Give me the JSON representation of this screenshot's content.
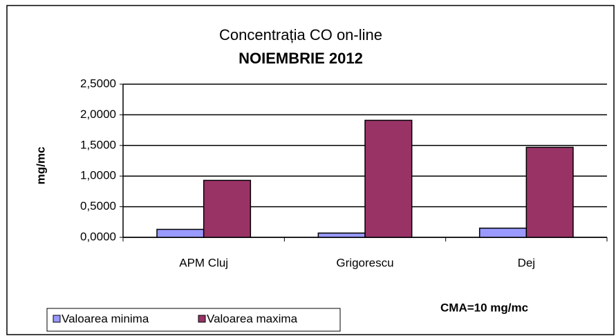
{
  "chart_data": {
    "type": "bar",
    "title": "Concentrația CO on-line",
    "subtitle": "NOIEMBRIE 2012",
    "y_label": "mg/mc",
    "annotation": "CMA=10 mg/mc",
    "categories": [
      "APM Cluj",
      "Grigorescu",
      "Dej"
    ],
    "series": [
      {
        "name": "Valoarea minima",
        "color": "#9999ff",
        "values": [
          0.13,
          0.07,
          0.15
        ]
      },
      {
        "name": "Valoarea maxima",
        "color": "#993366",
        "values": [
          0.93,
          1.91,
          1.47
        ]
      }
    ],
    "ylim": [
      0,
      2.5
    ],
    "yticks": [
      {
        "value": 0,
        "label": "0,0000"
      },
      {
        "value": 0.5,
        "label": "0,5000"
      },
      {
        "value": 1,
        "label": "1,0000"
      },
      {
        "value": 1.5,
        "label": "1,5000"
      },
      {
        "value": 2,
        "label": "2,0000"
      },
      {
        "value": 2.5,
        "label": "2,5000"
      }
    ],
    "grid": true,
    "legend": "bottom-left"
  }
}
